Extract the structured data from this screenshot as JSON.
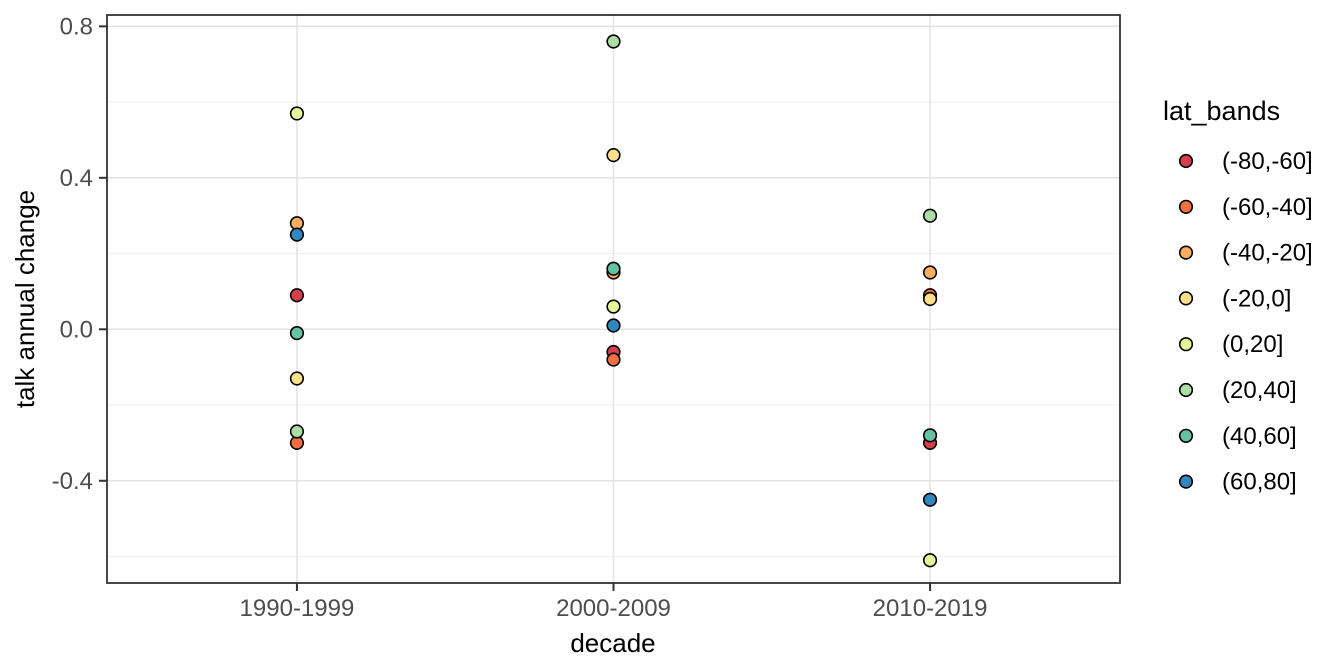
{
  "figure": {
    "background": "#FFFFFF"
  },
  "chart_data": {
    "type": "scatter",
    "title": "",
    "xlabel": "decade",
    "ylabel": "talk annual change",
    "categories": [
      "1990-1999",
      "2000-2009",
      "2010-2019"
    ],
    "y_tick_labels": [
      "0.8",
      "0.4",
      "0.0",
      "-0.4"
    ],
    "y_tick_values": [
      0.8,
      0.4,
      0.0,
      -0.4
    ],
    "y_minor_values": [
      0.6,
      0.2,
      -0.2,
      -0.6
    ],
    "ylim": [
      -0.67,
      0.83
    ],
    "grid": true,
    "legend_position": "right",
    "legend_title": "lat_bands",
    "series": [
      {
        "name": "(-80,-60]",
        "color": "#D53E4F",
        "values": [
          0.09,
          -0.06,
          -0.3
        ]
      },
      {
        "name": "(-60,-40]",
        "color": "#F46D43",
        "values": [
          -0.3,
          -0.08,
          0.09
        ]
      },
      {
        "name": "(-40,-20]",
        "color": "#FDAE61",
        "values": [
          0.28,
          0.15,
          0.15
        ]
      },
      {
        "name": "(-20,0]",
        "color": "#FEE08B",
        "values": [
          -0.13,
          0.46,
          0.08
        ]
      },
      {
        "name": "(0,20]",
        "color": "#E6F598",
        "values": [
          0.57,
          0.06,
          -0.61
        ]
      },
      {
        "name": "(20,40]",
        "color": "#ABDDA4",
        "values": [
          -0.27,
          0.76,
          0.3
        ]
      },
      {
        "name": "(40,60]",
        "color": "#66C2A5",
        "values": [
          -0.01,
          0.16,
          -0.28
        ]
      },
      {
        "name": "(60,80]",
        "color": "#3288BD",
        "values": [
          0.25,
          0.01,
          -0.45
        ]
      }
    ]
  },
  "style": {
    "major_grid_color": "#E4E4E4",
    "minor_grid_color": "#F0F0F0",
    "panel_border_color": "#333333",
    "tick_mark_color": "#333333",
    "tick_label_color": "#4D4D4D",
    "axis_title_color": "#000000",
    "legend_text_color": "#000000",
    "point_stroke_color": "#000000"
  }
}
